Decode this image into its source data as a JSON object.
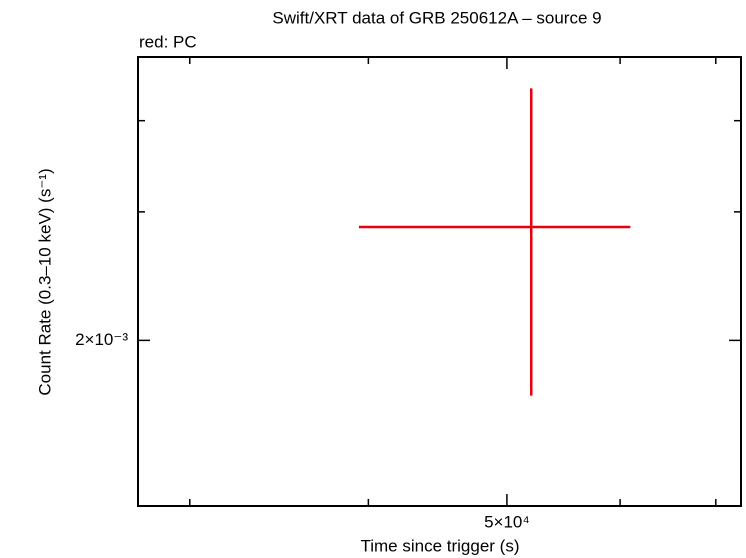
{
  "chart_data": {
    "type": "errorbar",
    "title": "Swift/XRT data of GRB 250612A – source 9",
    "subtitle": "red: PC",
    "xlabel": "Time since trigger (s)",
    "ylabel": "Count Rate (0.3–10 keV) (s⁻¹)",
    "xscale": "log",
    "yscale": "log",
    "xlim": [
      27600,
      72900
    ],
    "ylim": [
      0.001186,
      0.00489
    ],
    "xticks": [
      {
        "value": 50000,
        "label": "5×10⁴"
      }
    ],
    "xminor_ticks": [
      30000,
      40000,
      60000,
      70000
    ],
    "yticks": [
      {
        "value": 0.002,
        "label": "2×10⁻³"
      }
    ],
    "yminor_ticks": [
      0.003,
      0.004
    ],
    "series": [
      {
        "name": "PC",
        "color": "#e8000b",
        "x": [
          52000
        ],
        "x_low": [
          39400
        ],
        "x_high": [
          61000
        ],
        "values": [
          0.00286
        ],
        "y_low": [
          0.00168
        ],
        "y_high": [
          0.00443
        ]
      }
    ]
  }
}
